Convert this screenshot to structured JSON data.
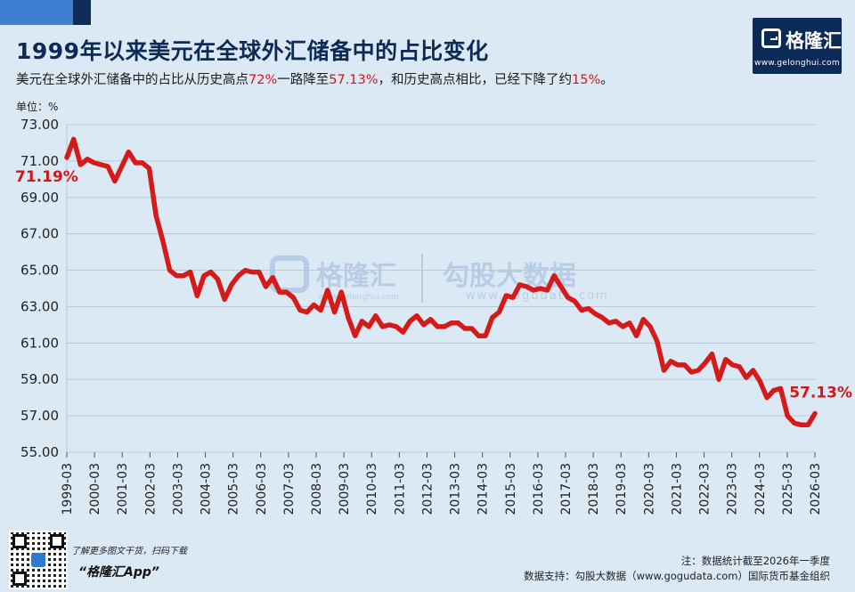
{
  "header": {
    "title": "1999年以来美元在全球外汇储备中的占比变化",
    "subtitle_parts": [
      {
        "text": "美元在全球外汇储备中的占比从历史高点",
        "hl": false
      },
      {
        "text": "72%",
        "hl": true
      },
      {
        "text": "一路降至",
        "hl": false
      },
      {
        "text": "57.13%",
        "hl": true
      },
      {
        "text": "，和历史高点相比，已经下降了约",
        "hl": false
      },
      {
        "text": "15%",
        "hl": true
      },
      {
        "text": "。",
        "hl": false
      }
    ]
  },
  "logo": {
    "name": "格隆汇",
    "url": "www.gelonghui.com"
  },
  "watermark": {
    "left": "格隆汇",
    "left_url": "www.gelonghui.com",
    "right": "勾股大数据",
    "right_url": "www.gogudata.com"
  },
  "colors": {
    "line": "#d51a1a",
    "highlight": "#d01818",
    "title": "#0b2a55",
    "background": "#dbe9f5",
    "grid": "#b8c8d8"
  },
  "chart_data": {
    "type": "line",
    "title": "1999年以来美元在全球外汇储备中的占比变化",
    "unit_label": "单位：%",
    "ylim": [
      55,
      73
    ],
    "yticks": [
      "73.00",
      "71.00",
      "69.00",
      "67.00",
      "65.00",
      "63.00",
      "61.00",
      "59.00",
      "57.00",
      "55.00"
    ],
    "ytick_values": [
      73,
      71,
      69,
      67,
      65,
      63,
      61,
      59,
      57,
      55
    ],
    "xtick_labels": [
      "1999-03",
      "2000-03",
      "2001-03",
      "2002-03",
      "2003-03",
      "2004-03",
      "2005-03",
      "2006-03",
      "2007-03",
      "2008-03",
      "2009-03",
      "2010-03",
      "2011-03",
      "2012-03",
      "2013-03",
      "2014-03",
      "2015-03",
      "2016-03",
      "2017-03",
      "2018-03",
      "2019-03",
      "2020-03",
      "2021-03",
      "2022-03",
      "2023-03",
      "2024-03",
      "2025-03",
      "2026-03"
    ],
    "grid": true,
    "series": [
      {
        "values": [
          71.19,
          72.2,
          70.8,
          71.1,
          70.9,
          70.8,
          70.7,
          69.9,
          70.7,
          71.5,
          70.9,
          70.9,
          70.6,
          68.0,
          66.6,
          65.0,
          64.7,
          64.7,
          64.9,
          63.6,
          64.7,
          64.9,
          64.5,
          63.4,
          64.2,
          64.7,
          65.0,
          64.9,
          64.9,
          64.1,
          64.6,
          63.8,
          63.8,
          63.5,
          62.8,
          62.7,
          63.1,
          62.8,
          63.9,
          62.7,
          63.8,
          62.4,
          61.4,
          62.2,
          61.9,
          62.5,
          61.9,
          62.0,
          61.9,
          61.6,
          62.2,
          62.5,
          62.0,
          62.3,
          61.9,
          61.9,
          62.1,
          62.1,
          61.8,
          61.8,
          61.4,
          61.4,
          62.4,
          62.7,
          63.6,
          63.5,
          64.2,
          64.1,
          63.9,
          64.0,
          63.9,
          64.7,
          64.1,
          63.5,
          63.3,
          62.8,
          62.9,
          62.6,
          62.4,
          62.1,
          62.2,
          61.9,
          62.1,
          61.4,
          62.3,
          61.9,
          61.1,
          59.5,
          60.0,
          59.8,
          59.8,
          59.4,
          59.5,
          59.9,
          60.4,
          59.0,
          60.1,
          59.8,
          59.7,
          59.1,
          59.5,
          58.9,
          58.0,
          58.4,
          58.5,
          57.0,
          56.6,
          56.5,
          56.5,
          57.13
        ],
        "start_label": "71.19%",
        "end_label": "57.13%"
      }
    ]
  },
  "footer": {
    "tagline": "了解更多图文干货，扫码下载",
    "app": "“格隆汇App”",
    "note": "注：数据统计截至2026年一季度",
    "source": "数据支持：勾股大数据（www.gogudata.com）国际货币基金组织"
  }
}
